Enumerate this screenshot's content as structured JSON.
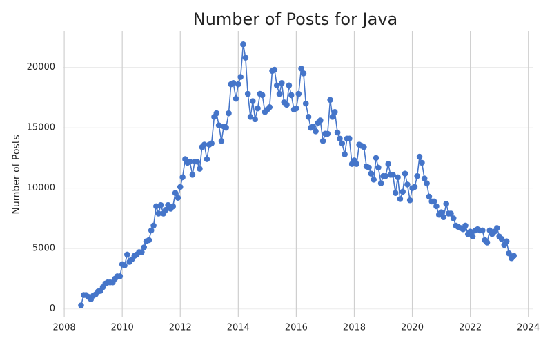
{
  "chart_data": {
    "type": "line",
    "title": "Number of Posts for Java",
    "y_label": "Number of Posts",
    "x": [
      2008.58,
      2008.67,
      2008.75,
      2008.83,
      2008.92,
      2009.0,
      2009.08,
      2009.17,
      2009.25,
      2009.33,
      2009.42,
      2009.5,
      2009.58,
      2009.67,
      2009.75,
      2009.83,
      2009.92,
      2010.0,
      2010.08,
      2010.17,
      2010.25,
      2010.33,
      2010.42,
      2010.5,
      2010.58,
      2010.67,
      2010.75,
      2010.83,
      2010.92,
      2011.0,
      2011.08,
      2011.17,
      2011.25,
      2011.33,
      2011.42,
      2011.5,
      2011.58,
      2011.67,
      2011.75,
      2011.83,
      2011.92,
      2012.0,
      2012.08,
      2012.17,
      2012.25,
      2012.33,
      2012.42,
      2012.5,
      2012.58,
      2012.67,
      2012.75,
      2012.83,
      2012.92,
      2013.0,
      2013.08,
      2013.17,
      2013.25,
      2013.33,
      2013.42,
      2013.5,
      2013.58,
      2013.67,
      2013.75,
      2013.83,
      2013.92,
      2014.0,
      2014.08,
      2014.17,
      2014.25,
      2014.33,
      2014.42,
      2014.5,
      2014.58,
      2014.67,
      2014.75,
      2014.83,
      2014.92,
      2015.0,
      2015.08,
      2015.17,
      2015.25,
      2015.33,
      2015.42,
      2015.5,
      2015.58,
      2015.67,
      2015.75,
      2015.83,
      2015.92,
      2016.0,
      2016.08,
      2016.17,
      2016.25,
      2016.33,
      2016.42,
      2016.5,
      2016.58,
      2016.67,
      2016.75,
      2016.83,
      2016.92,
      2017.0,
      2017.08,
      2017.17,
      2017.25,
      2017.33,
      2017.42,
      2017.5,
      2017.58,
      2017.67,
      2017.75,
      2017.83,
      2017.92,
      2018.0,
      2018.08,
      2018.17,
      2018.25,
      2018.33,
      2018.42,
      2018.5,
      2018.58,
      2018.67,
      2018.75,
      2018.83,
      2018.92,
      2019.0,
      2019.08,
      2019.17,
      2019.25,
      2019.33,
      2019.42,
      2019.5,
      2019.58,
      2019.67,
      2019.75,
      2019.83,
      2019.92,
      2020.0,
      2020.08,
      2020.17,
      2020.25,
      2020.33,
      2020.42,
      2020.5,
      2020.58,
      2020.67,
      2020.75,
      2020.83,
      2020.92,
      2021.0,
      2021.08,
      2021.17,
      2021.25,
      2021.33,
      2021.42,
      2021.5,
      2021.58,
      2021.67,
      2021.75,
      2021.83,
      2021.92,
      2022.0,
      2022.08,
      2022.17,
      2022.25,
      2022.33,
      2022.42,
      2022.5,
      2022.58,
      2022.67,
      2022.75,
      2022.83,
      2022.92,
      2023.0,
      2023.08,
      2023.17,
      2023.25,
      2023.33,
      2023.42,
      2023.5
    ],
    "series": [
      {
        "name": "Java",
        "color": "#4575c9",
        "values": [
          300,
          1150,
          1150,
          1000,
          800,
          1100,
          1200,
          1450,
          1500,
          1800,
          2100,
          2200,
          2200,
          2200,
          2500,
          2700,
          2700,
          3700,
          3600,
          4500,
          3900,
          4100,
          4400,
          4500,
          4700,
          4700,
          5100,
          5600,
          5700,
          6500,
          6900,
          8500,
          7900,
          8600,
          7900,
          8200,
          8600,
          8300,
          8500,
          9600,
          9200,
          10100,
          10900,
          12400,
          12100,
          12200,
          11100,
          12200,
          12200,
          11600,
          13400,
          13600,
          12400,
          13600,
          13700,
          15900,
          16200,
          15200,
          13900,
          15100,
          15000,
          16200,
          18600,
          18700,
          17400,
          18600,
          19200,
          21900,
          20800,
          17800,
          15900,
          17200,
          15700,
          16600,
          17800,
          17700,
          16300,
          16500,
          16700,
          19700,
          19800,
          18500,
          17800,
          18700,
          17100,
          16900,
          18500,
          17700,
          16500,
          16600,
          17800,
          19900,
          19500,
          17000,
          15900,
          15000,
          15100,
          14700,
          15400,
          15600,
          13900,
          14500,
          14500,
          17300,
          15900,
          16300,
          14600,
          14100,
          13700,
          12800,
          14100,
          14100,
          12000,
          12300,
          12000,
          13600,
          13500,
          13400,
          11800,
          11700,
          11200,
          10700,
          12500,
          11700,
          10400,
          11000,
          11000,
          12000,
          11100,
          11100,
          9600,
          10900,
          9100,
          9700,
          11200,
          10300,
          9000,
          10000,
          10100,
          11000,
          12600,
          12100,
          10800,
          10400,
          9300,
          8900,
          8900,
          8500,
          7800,
          8000,
          7600,
          8700,
          7900,
          7900,
          7500,
          6900,
          6800,
          6700,
          6600,
          6900,
          6200,
          6400,
          6000,
          6500,
          6600,
          6500,
          6500,
          5700,
          5500,
          6500,
          6200,
          6400,
          6700,
          6000,
          5800,
          5300,
          5600,
          4600,
          4200,
          4400
        ]
      }
    ],
    "xlim": [
      2007.95,
      2024.15
    ],
    "xticks": [
      2008,
      2010,
      2012,
      2014,
      2016,
      2018,
      2020,
      2022,
      2024
    ],
    "ylim": [
      -700,
      23000
    ],
    "yticks": [
      0,
      5000,
      10000,
      15000,
      20000
    ],
    "grid": true
  }
}
